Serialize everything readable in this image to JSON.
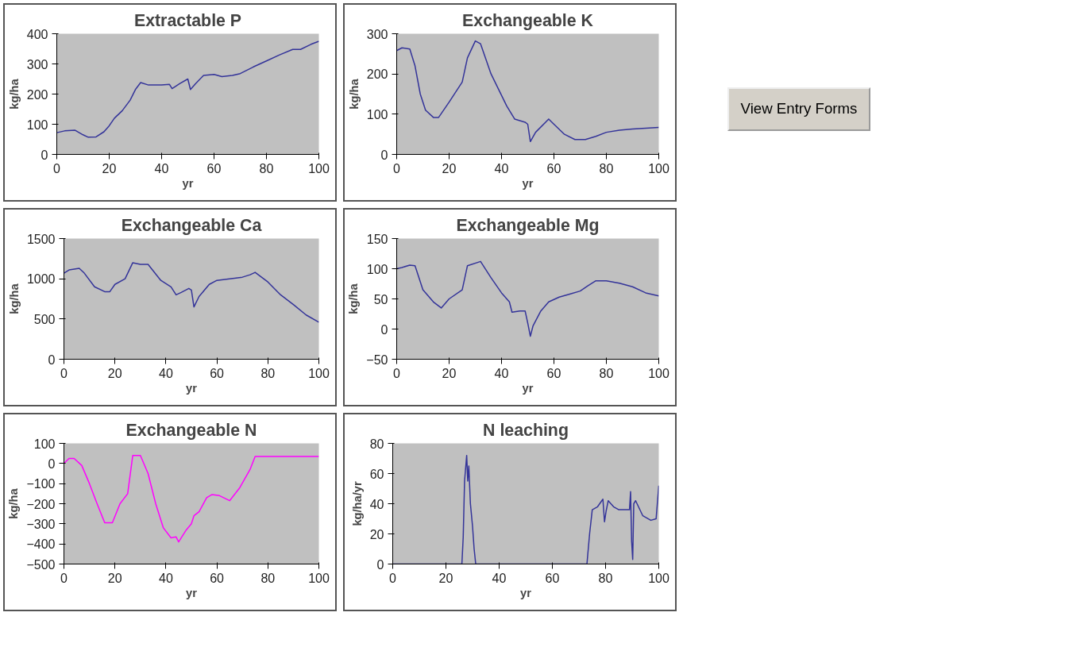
{
  "chart_data": [
    {
      "type": "line",
      "title": "Extractable P",
      "xlabel": "yr",
      "ylabel": "kg/ha",
      "xlim": [
        0,
        100
      ],
      "ylim": [
        0,
        400
      ],
      "xticks": [
        0,
        20,
        40,
        60,
        80,
        100
      ],
      "yticks": [
        0,
        100,
        200,
        300,
        400
      ],
      "grid": false,
      "series": [
        {
          "color": "#333399",
          "x": [
            0,
            3,
            7,
            10,
            12,
            15,
            18,
            20,
            22,
            25,
            28,
            30,
            32,
            35,
            40,
            43,
            44,
            47,
            50,
            51,
            53,
            56,
            60,
            63,
            67,
            70,
            75,
            80,
            85,
            90,
            93,
            97,
            100
          ],
          "values": [
            72,
            78,
            80,
            65,
            57,
            58,
            75,
            95,
            120,
            145,
            180,
            215,
            238,
            230,
            230,
            232,
            218,
            235,
            250,
            215,
            235,
            262,
            265,
            258,
            262,
            268,
            290,
            310,
            330,
            348,
            348,
            365,
            375
          ]
        }
      ]
    },
    {
      "type": "line",
      "title": "Exchangeable K",
      "xlabel": "yr",
      "ylabel": "kg/ha",
      "xlim": [
        0,
        100
      ],
      "ylim": [
        0,
        300
      ],
      "xticks": [
        0,
        20,
        40,
        60,
        80,
        100
      ],
      "yticks": [
        0,
        100,
        200,
        300
      ],
      "grid": false,
      "series": [
        {
          "color": "#333399",
          "x": [
            0,
            2,
            5,
            7,
            9,
            11,
            14,
            16,
            20,
            25,
            27,
            30,
            32,
            36,
            42,
            45,
            49,
            50,
            51,
            53,
            58,
            60,
            64,
            68,
            72,
            76,
            80,
            85,
            90,
            95,
            100
          ],
          "values": [
            258,
            265,
            262,
            220,
            150,
            110,
            92,
            92,
            130,
            180,
            240,
            282,
            275,
            200,
            120,
            88,
            80,
            75,
            32,
            55,
            88,
            75,
            50,
            37,
            37,
            45,
            55,
            60,
            63,
            65,
            67
          ]
        }
      ]
    },
    {
      "type": "line",
      "title": "Exchangeable Ca",
      "xlabel": "yr",
      "ylabel": "kg/ha",
      "xlim": [
        0,
        100
      ],
      "ylim": [
        0,
        1500
      ],
      "xticks": [
        0,
        20,
        40,
        60,
        80,
        100
      ],
      "yticks": [
        0,
        500,
        1000,
        1500
      ],
      "grid": false,
      "series": [
        {
          "color": "#333399",
          "x": [
            0,
            2,
            6,
            8,
            12,
            16,
            18,
            20,
            24,
            27,
            30,
            33,
            38,
            42,
            44,
            46,
            49,
            50,
            51,
            53,
            57,
            60,
            65,
            70,
            73,
            75,
            80,
            85,
            90,
            95,
            100
          ],
          "values": [
            1070,
            1110,
            1130,
            1070,
            900,
            840,
            840,
            930,
            1000,
            1200,
            1180,
            1180,
            980,
            900,
            800,
            830,
            880,
            860,
            650,
            780,
            930,
            980,
            1000,
            1020,
            1050,
            1080,
            960,
            800,
            680,
            550,
            460
          ]
        }
      ]
    },
    {
      "type": "line",
      "title": "Exchangeable Mg",
      "xlabel": "yr",
      "ylabel": "kg/ha",
      "xlim": [
        0,
        100
      ],
      "ylim": [
        -50,
        150
      ],
      "xticks": [
        0,
        20,
        40,
        60,
        80,
        100
      ],
      "yticks": [
        -50,
        0,
        50,
        100,
        150
      ],
      "grid": false,
      "series": [
        {
          "color": "#333399",
          "x": [
            0,
            2,
            5,
            7,
            10,
            14,
            17,
            20,
            25,
            27,
            32,
            36,
            40,
            43,
            44,
            47,
            49,
            50,
            51,
            52,
            55,
            58,
            62,
            66,
            70,
            73,
            76,
            80,
            85,
            90,
            95,
            100
          ],
          "values": [
            100,
            102,
            106,
            105,
            65,
            45,
            35,
            50,
            65,
            105,
            112,
            85,
            60,
            45,
            28,
            30,
            30,
            10,
            -12,
            5,
            30,
            45,
            53,
            58,
            63,
            72,
            80,
            80,
            76,
            70,
            60,
            55
          ]
        }
      ]
    },
    {
      "type": "line",
      "title": "Exchangeable N",
      "xlabel": "yr",
      "ylabel": "kg/ha",
      "xlim": [
        0,
        100
      ],
      "ylim": [
        -500,
        100
      ],
      "xticks": [
        0,
        20,
        40,
        60,
        80,
        100
      ],
      "yticks": [
        -500,
        -400,
        -300,
        -200,
        -100,
        0,
        100
      ],
      "grid": false,
      "series": [
        {
          "color": "#ff00ff",
          "x": [
            0,
            2,
            4,
            7,
            10,
            13,
            16,
            19,
            22,
            25,
            27,
            30,
            33,
            36,
            39,
            42,
            44,
            45,
            48,
            50,
            51,
            53,
            56,
            58,
            61,
            65,
            69,
            73,
            75,
            100
          ],
          "values": [
            0,
            25,
            25,
            -10,
            -100,
            -200,
            -295,
            -295,
            -200,
            -150,
            40,
            40,
            -50,
            -200,
            -320,
            -370,
            -365,
            -390,
            -330,
            -300,
            -260,
            -240,
            -170,
            -155,
            -160,
            -185,
            -120,
            -30,
            35,
            35
          ]
        }
      ]
    },
    {
      "type": "line",
      "title": "N leaching",
      "xlabel": "yr",
      "ylabel": "kg/ha/yr",
      "xlim": [
        0,
        100
      ],
      "ylim": [
        0,
        80
      ],
      "xticks": [
        0,
        20,
        40,
        60,
        80,
        100
      ],
      "yticks": [
        0,
        20,
        40,
        60,
        80
      ],
      "grid": false,
      "series": [
        {
          "color": "#333399",
          "x": [
            0,
            26,
            26.5,
            27,
            27.8,
            28.2,
            28.6,
            29.2,
            30,
            30.6,
            31.2,
            73,
            74,
            75,
            77,
            79,
            79.6,
            80.2,
            81,
            83,
            85,
            89,
            89.4,
            89.8,
            90.2,
            90.6,
            91.3,
            94,
            97,
            99,
            100
          ],
          "values": [
            0,
            0,
            18,
            55,
            72,
            55,
            65,
            40,
            25,
            10,
            0,
            0,
            20,
            36,
            38,
            43,
            28,
            35,
            42,
            38,
            36,
            36,
            48,
            15,
            3,
            40,
            42,
            32,
            29,
            30,
            52
          ]
        }
      ]
    },
    {
      "type": "other",
      "title": "View Entry Forms"
    }
  ]
}
